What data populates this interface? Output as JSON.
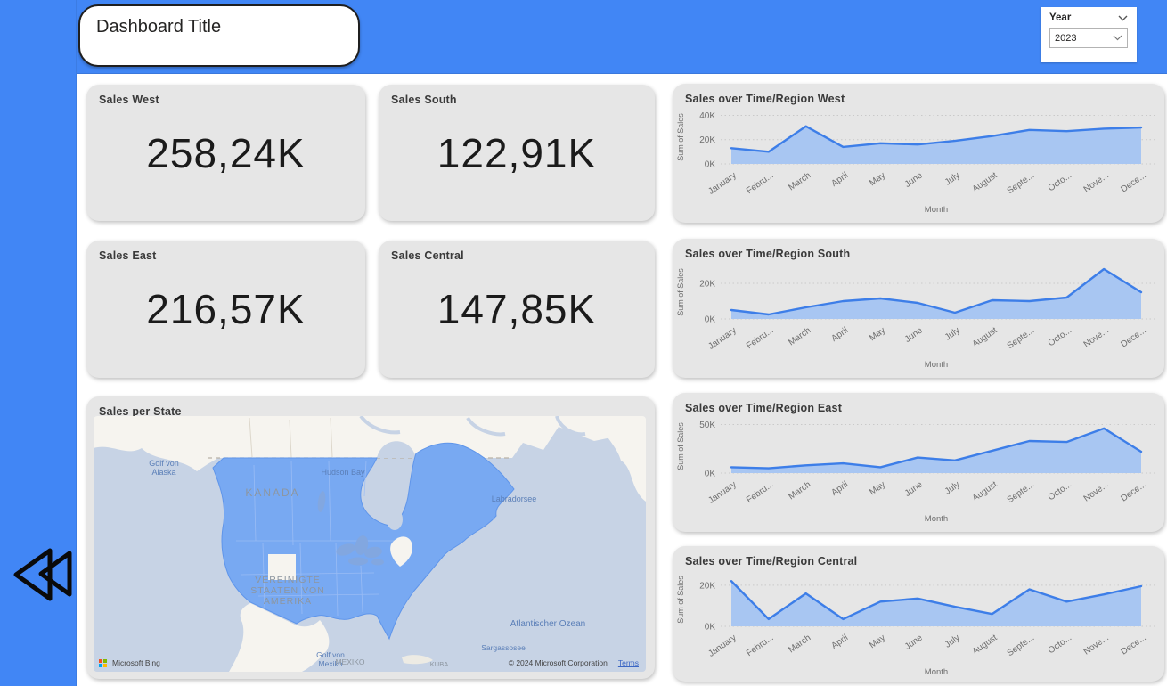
{
  "header": {
    "title": "Dashboard Title"
  },
  "slicer": {
    "label": "Year",
    "value": "2023"
  },
  "kpis": [
    {
      "title": "Sales West",
      "value": "258,24K"
    },
    {
      "title": "Sales South",
      "value": "122,91K"
    },
    {
      "title": "Sales East",
      "value": "216,57K"
    },
    {
      "title": "Sales Central",
      "value": "147,85K"
    }
  ],
  "map": {
    "title": "Sales per State",
    "labels": {
      "gulf_alaska": "Golf von Alaska",
      "kanada": "KANADA",
      "hudson_bay": "Hudson Bay",
      "labrador_sea": "Labradorsee",
      "usa": "VEREINIGTE STAATEN VON AMERIKA",
      "atlantic": "Atlantischer Ozean",
      "sargasso": "Sargassosee",
      "gulf_mexico": "Golf von Mexiko",
      "mexiko": "MEXIKO",
      "kuba": "KUBA"
    },
    "attribution": {
      "brand": "Microsoft Bing",
      "copyright": "© 2024 Microsoft Corporation",
      "terms": "Terms"
    }
  },
  "chart_data": [
    {
      "type": "area",
      "title": "Sales over Time/Region West",
      "categories": [
        "January",
        "Febru...",
        "March",
        "April",
        "May",
        "June",
        "July",
        "August",
        "Septe...",
        "Octo...",
        "Nove...",
        "Dece..."
      ],
      "values": [
        13,
        10,
        31,
        14,
        17,
        16,
        19,
        23,
        28,
        27,
        29,
        30
      ],
      "unit": "K",
      "xlabel": "Month",
      "ylabel": "Sum of Sales",
      "ylim": [
        0,
        44
      ],
      "yticks": [
        {
          "label": "0K",
          "value": 0
        },
        {
          "label": "20K",
          "value": 20
        },
        {
          "label": "40K",
          "value": 40
        }
      ],
      "grid": "dotted",
      "legend": "none"
    },
    {
      "type": "area",
      "title": "Sales over Time/Region South",
      "categories": [
        "January",
        "Febru...",
        "March",
        "April",
        "May",
        "June",
        "July",
        "August",
        "Septe...",
        "Octo...",
        "Nove...",
        "Dece..."
      ],
      "values": [
        5,
        2.5,
        6.5,
        10,
        11.5,
        9,
        3.5,
        10.5,
        10,
        12,
        28,
        15
      ],
      "unit": "K",
      "xlabel": "Month",
      "ylabel": "Sum of Sales",
      "ylim": [
        0,
        30
      ],
      "yticks": [
        {
          "label": "0K",
          "value": 0
        },
        {
          "label": "20K",
          "value": 20
        }
      ],
      "grid": "dotted",
      "legend": "none"
    },
    {
      "type": "area",
      "title": "Sales over Time/Region East",
      "categories": [
        "January",
        "Febru...",
        "March",
        "April",
        "May",
        "June",
        "July",
        "August",
        "Septe...",
        "Octo...",
        "Nove...",
        "Dece..."
      ],
      "values": [
        6,
        5,
        8,
        10,
        6,
        16,
        13,
        23,
        33,
        32,
        46,
        22
      ],
      "unit": "K",
      "xlabel": "Month",
      "ylabel": "Sum of Sales",
      "ylim": [
        0,
        55
      ],
      "yticks": [
        {
          "label": "0K",
          "value": 0
        },
        {
          "label": "50K",
          "value": 50
        }
      ],
      "grid": "dotted",
      "legend": "none"
    },
    {
      "type": "area",
      "title": "Sales over Time/Region Central",
      "categories": [
        "January",
        "Febru...",
        "March",
        "April",
        "May",
        "June",
        "July",
        "August",
        "Septe...",
        "Octo...",
        "Nove...",
        "Dece..."
      ],
      "values": [
        22,
        3.5,
        16,
        3.5,
        12,
        13.5,
        9.5,
        6,
        18,
        12,
        15.5,
        19.5
      ],
      "unit": "K",
      "xlabel": "Month",
      "ylabel": "Sum of Sales",
      "ylim": [
        0,
        26
      ],
      "yticks": [
        {
          "label": "0K",
          "value": 0
        },
        {
          "label": "20K",
          "value": 20
        }
      ],
      "grid": "dotted",
      "legend": "none"
    }
  ],
  "colors": {
    "accent_blue": "#4186F5",
    "card_bg": "#E6E6E6",
    "area_fill": "#A8C6F2",
    "area_line": "#3D7EE8",
    "axis_text": "#6e6e6e",
    "gridline": "#c9c9c9",
    "map_water": "#C7D3E5",
    "map_land": "#F6F4EF",
    "map_region": "#78A9F2",
    "map_lakes": "#82A7E0"
  }
}
